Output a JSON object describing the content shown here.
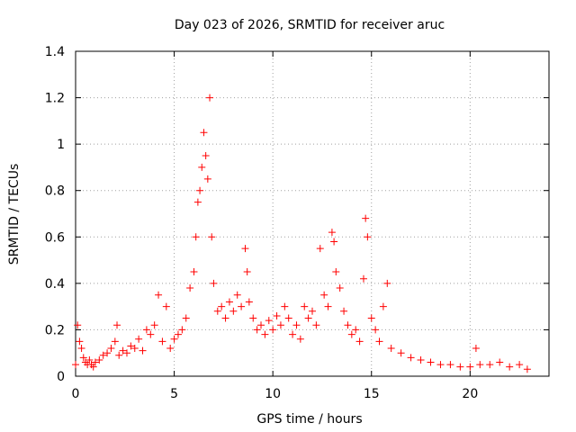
{
  "chart_data": {
    "type": "scatter",
    "title": "Day 023 of 2026, SRMTID for receiver aruc",
    "xlabel": "GPS time / hours",
    "ylabel": "SRMTID / TECUs",
    "xlim": [
      0,
      24
    ],
    "ylim": [
      0,
      1.4
    ],
    "xticks": [
      0,
      5,
      10,
      15,
      20
    ],
    "xtick_labels": [
      "0",
      "5",
      "10",
      "15",
      "20"
    ],
    "yticks": [
      0,
      0.2,
      0.4,
      0.6,
      0.8,
      1.0,
      1.2,
      1.4
    ],
    "ytick_labels": [
      "0",
      "0.2",
      "0.4",
      "0.6",
      "0.8",
      "1",
      "1.2",
      "1.4"
    ],
    "grid": true,
    "marker": "+",
    "series": [
      {
        "name": "SRMTID",
        "color": "#ff0000",
        "x": [
          0.0,
          0.1,
          0.2,
          0.3,
          0.4,
          0.5,
          0.6,
          0.7,
          0.8,
          0.9,
          1.0,
          1.2,
          1.4,
          1.6,
          1.8,
          2.0,
          2.1,
          2.2,
          2.4,
          2.6,
          2.8,
          3.0,
          3.2,
          3.4,
          3.6,
          3.8,
          4.0,
          4.2,
          4.4,
          4.6,
          4.8,
          5.0,
          5.2,
          5.4,
          5.6,
          5.8,
          6.0,
          6.1,
          6.2,
          6.3,
          6.4,
          6.5,
          6.6,
          6.7,
          6.8,
          6.9,
          7.0,
          7.2,
          7.4,
          7.6,
          7.8,
          8.0,
          8.2,
          8.4,
          8.6,
          8.7,
          8.8,
          9.0,
          9.2,
          9.4,
          9.6,
          9.8,
          10.0,
          10.2,
          10.4,
          10.6,
          10.8,
          11.0,
          11.2,
          11.4,
          11.6,
          11.8,
          12.0,
          12.2,
          12.4,
          12.6,
          12.8,
          13.0,
          13.1,
          13.2,
          13.4,
          13.6,
          13.8,
          14.0,
          14.2,
          14.4,
          14.6,
          14.7,
          14.8,
          15.0,
          15.2,
          15.4,
          15.6,
          15.8,
          16.0,
          16.5,
          17.0,
          17.5,
          18.0,
          18.5,
          19.0,
          19.5,
          20.0,
          20.3,
          20.5,
          21.0,
          21.5,
          22.0,
          22.5,
          22.9
        ],
        "y": [
          0.05,
          0.22,
          0.15,
          0.12,
          0.08,
          0.06,
          0.05,
          0.07,
          0.05,
          0.04,
          0.06,
          0.07,
          0.09,
          0.1,
          0.12,
          0.15,
          0.22,
          0.09,
          0.11,
          0.1,
          0.13,
          0.12,
          0.16,
          0.11,
          0.2,
          0.18,
          0.22,
          0.35,
          0.15,
          0.3,
          0.12,
          0.16,
          0.18,
          0.2,
          0.25,
          0.38,
          0.45,
          0.6,
          0.75,
          0.8,
          0.9,
          1.05,
          0.95,
          0.85,
          1.2,
          0.6,
          0.4,
          0.28,
          0.3,
          0.25,
          0.32,
          0.28,
          0.35,
          0.3,
          0.55,
          0.45,
          0.32,
          0.25,
          0.2,
          0.22,
          0.18,
          0.24,
          0.2,
          0.26,
          0.22,
          0.3,
          0.25,
          0.18,
          0.22,
          0.16,
          0.3,
          0.25,
          0.28,
          0.22,
          0.55,
          0.35,
          0.3,
          0.62,
          0.58,
          0.45,
          0.38,
          0.28,
          0.22,
          0.18,
          0.2,
          0.15,
          0.42,
          0.68,
          0.6,
          0.25,
          0.2,
          0.15,
          0.3,
          0.4,
          0.12,
          0.1,
          0.08,
          0.07,
          0.06,
          0.05,
          0.05,
          0.04,
          0.04,
          0.12,
          0.05,
          0.05,
          0.06,
          0.04,
          0.05,
          0.03
        ]
      }
    ]
  }
}
